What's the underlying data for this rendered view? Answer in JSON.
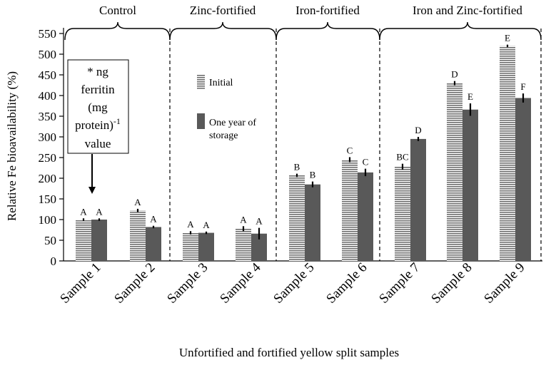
{
  "chart_data": {
    "type": "bar",
    "categories": [
      "Sample 1",
      "Sample 2",
      "Sample 3",
      "Sample 4",
      "Sample 5",
      "Sample 6",
      "Sample 7",
      "Sample 8",
      "Sample 9"
    ],
    "series": [
      {
        "name": "Initial",
        "pattern": "horizontal-stripes",
        "values": [
          100,
          122,
          68,
          78,
          207,
          245,
          228,
          430,
          520
        ],
        "errors": [
          3,
          4,
          4,
          6,
          4,
          6,
          7,
          5,
          3
        ],
        "significance": [
          "A",
          "A",
          "A",
          "A",
          "B",
          "C",
          "BC",
          "D",
          "E"
        ]
      },
      {
        "name": "One year of storage",
        "pattern": "solid",
        "values": [
          100,
          82,
          68,
          66,
          185,
          214,
          295,
          366,
          394
        ],
        "errors": [
          3,
          3,
          3,
          14,
          7,
          9,
          5,
          15,
          11
        ],
        "significance": [
          "A",
          "A",
          "A",
          "A",
          "B",
          "C",
          "D",
          "E",
          "F"
        ]
      }
    ],
    "groups": [
      {
        "label": "Control",
        "samples": [
          1,
          2
        ]
      },
      {
        "label": "Zinc-fortified",
        "samples": [
          3,
          4
        ]
      },
      {
        "label": "Iron-fortified",
        "samples": [
          5,
          6
        ]
      },
      {
        "label": "Iron and Zinc-fortified",
        "samples": [
          7,
          8,
          9
        ]
      }
    ],
    "yticks": [
      0,
      50,
      100,
      150,
      200,
      250,
      300,
      350,
      400,
      450,
      500,
      550
    ],
    "ylim": [
      0,
      550
    ],
    "ylabel": "Relative Fe bioavailability (%)",
    "xlabel": "Unfortified and fortified yellow split samples",
    "annotation": {
      "star": "*",
      "line1": "ng",
      "line2": "ferritin",
      "line3": "(mg",
      "line4": "protein)",
      "superscript": "-1",
      "line5": "value",
      "target": "Sample 1"
    },
    "legend_position": "upper-left, inside plot",
    "colors": {
      "initial_stripe_dark": "#6f6f6f",
      "initial_stripe_light": "#ffffff",
      "storage_fill": "#595959",
      "axis": "#000000"
    }
  }
}
